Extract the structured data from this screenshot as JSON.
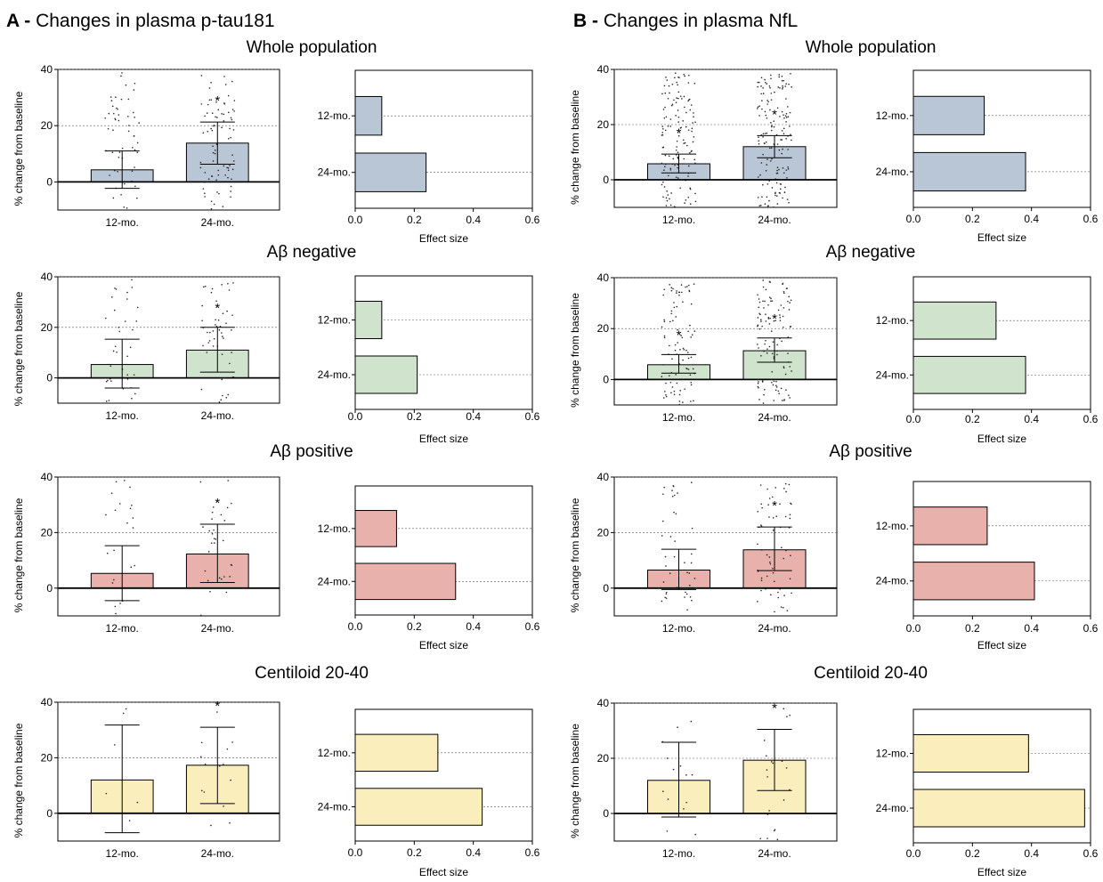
{
  "figure": {
    "panels": [
      {
        "letter": "A",
        "separator": " - ",
        "title": "Changes in plasma p-tau181"
      },
      {
        "letter": "B",
        "separator": " - ",
        "title": "Changes in plasma NfL"
      }
    ]
  },
  "chart_data": [
    {
      "type": "bar",
      "panel": "A",
      "subtitle": "Whole population",
      "ylabel": "% change from baseline",
      "categories": [
        "12-mo.",
        "24-mo."
      ],
      "values": [
        4.3,
        13.8
      ],
      "error_low": [
        -2.3,
        6.3
      ],
      "error_high": [
        11.0,
        21.3
      ],
      "significant": [
        false,
        true
      ],
      "ylim": [
        -10,
        40
      ],
      "yticks": [
        0,
        20,
        40
      ],
      "color": "#b9c6d6",
      "points": {
        "n": [
          55,
          80
        ]
      }
    },
    {
      "type": "bar",
      "panel": "A",
      "orientation": "horizontal",
      "xlabel": "Effect size",
      "categories": [
        "12-mo.",
        "24-mo."
      ],
      "values": [
        0.09,
        0.24
      ],
      "xlim": [
        0,
        0.6
      ],
      "xticks": [
        0.0,
        0.2,
        0.4,
        0.6
      ],
      "color": "#b9c6d6"
    },
    {
      "type": "bar",
      "panel": "B",
      "subtitle": "Whole population",
      "ylabel": "% change from baseline",
      "categories": [
        "12-mo.",
        "24-mo."
      ],
      "values": [
        5.8,
        12.0
      ],
      "error_low": [
        2.5,
        8.0
      ],
      "error_high": [
        9.3,
        16.0
      ],
      "significant": [
        true,
        true
      ],
      "ylim": [
        -10,
        40
      ],
      "yticks": [
        0,
        20,
        40
      ],
      "color": "#b9c6d6",
      "points": {
        "n": [
          130,
          150
        ]
      }
    },
    {
      "type": "bar",
      "panel": "B",
      "orientation": "horizontal",
      "xlabel": "Effect size",
      "categories": [
        "12-mo.",
        "24-mo."
      ],
      "values": [
        0.24,
        0.38
      ],
      "xlim": [
        0,
        0.6
      ],
      "xticks": [
        0.0,
        0.2,
        0.4,
        0.6
      ],
      "color": "#b9c6d6"
    },
    {
      "type": "bar",
      "panel": "A",
      "subtitle": "Aβ negative",
      "ylabel": "% change from baseline",
      "categories": [
        "12-mo.",
        "24-mo."
      ],
      "values": [
        5.3,
        11.0
      ],
      "error_low": [
        -4.0,
        2.3
      ],
      "error_high": [
        15.3,
        20.0
      ],
      "significant": [
        false,
        true
      ],
      "ylim": [
        -10,
        40
      ],
      "yticks": [
        0,
        20,
        40
      ],
      "color": "#cfe3cd",
      "points": {
        "n": [
          35,
          50
        ]
      }
    },
    {
      "type": "bar",
      "panel": "A",
      "orientation": "horizontal",
      "xlabel": "Effect size",
      "categories": [
        "12-mo.",
        "24-mo."
      ],
      "values": [
        0.09,
        0.21
      ],
      "xlim": [
        0,
        0.6
      ],
      "xticks": [
        0.0,
        0.2,
        0.4,
        0.6
      ],
      "color": "#cfe3cd"
    },
    {
      "type": "bar",
      "panel": "B",
      "subtitle": "Aβ negative",
      "ylabel": "% change from baseline",
      "categories": [
        "12-mo.",
        "24-mo."
      ],
      "values": [
        5.8,
        11.3
      ],
      "error_low": [
        2.5,
        6.8
      ],
      "error_high": [
        9.8,
        16.3
      ],
      "significant": [
        true,
        true
      ],
      "ylim": [
        -10,
        40
      ],
      "yticks": [
        0,
        20,
        40
      ],
      "color": "#cfe3cd",
      "points": {
        "n": [
          90,
          110
        ]
      }
    },
    {
      "type": "bar",
      "panel": "B",
      "orientation": "horizontal",
      "xlabel": "Effect size",
      "categories": [
        "12-mo.",
        "24-mo."
      ],
      "values": [
        0.28,
        0.38
      ],
      "xlim": [
        0,
        0.6
      ],
      "xticks": [
        0.0,
        0.2,
        0.4,
        0.6
      ],
      "color": "#cfe3cd"
    },
    {
      "type": "bar",
      "panel": "A",
      "subtitle": "Aβ positive",
      "ylabel": "% change from baseline",
      "categories": [
        "12-mo.",
        "24-mo."
      ],
      "values": [
        5.3,
        12.3
      ],
      "error_low": [
        -4.5,
        2.0
      ],
      "error_high": [
        15.3,
        23.0
      ],
      "significant": [
        false,
        true
      ],
      "ylim": [
        -10,
        40
      ],
      "yticks": [
        0,
        20,
        40
      ],
      "color": "#e8b1ab",
      "points": {
        "n": [
          22,
          30
        ]
      }
    },
    {
      "type": "bar",
      "panel": "A",
      "orientation": "horizontal",
      "xlabel": "Effect size",
      "categories": [
        "12-mo.",
        "24-mo."
      ],
      "values": [
        0.14,
        0.34
      ],
      "xlim": [
        0,
        0.6
      ],
      "xticks": [
        0.0,
        0.2,
        0.4,
        0.6
      ],
      "color": "#e8b1ab"
    },
    {
      "type": "bar",
      "panel": "B",
      "subtitle": "Aβ positive",
      "ylabel": "% change from baseline",
      "categories": [
        "12-mo.",
        "24-mo."
      ],
      "values": [
        6.5,
        13.8
      ],
      "error_low": [
        -0.5,
        6.3
      ],
      "error_high": [
        14.0,
        22.0
      ],
      "significant": [
        false,
        true
      ],
      "ylim": [
        -10,
        40
      ],
      "yticks": [
        0,
        20,
        40
      ],
      "color": "#e8b1ab",
      "points": {
        "n": [
          40,
          60
        ]
      }
    },
    {
      "type": "bar",
      "panel": "B",
      "orientation": "horizontal",
      "xlabel": "Effect size",
      "categories": [
        "12-mo.",
        "24-mo."
      ],
      "values": [
        0.25,
        0.41
      ],
      "xlim": [
        0,
        0.6
      ],
      "xticks": [
        0.0,
        0.2,
        0.4,
        0.6
      ],
      "color": "#e8b1ab"
    },
    {
      "type": "bar",
      "panel": "A",
      "subtitle": "Centiloid 20-40",
      "ylabel": "% change from baseline",
      "categories": [
        "12-mo.",
        "24-mo."
      ],
      "values": [
        12.0,
        17.3
      ],
      "error_low": [
        -7.0,
        3.5
      ],
      "error_high": [
        31.8,
        31.0
      ],
      "significant": [
        false,
        true
      ],
      "ylim": [
        -10,
        40
      ],
      "yticks": [
        0,
        20,
        40
      ],
      "color": "#fbeebd",
      "points": {
        "n": [
          6,
          14
        ]
      }
    },
    {
      "type": "bar",
      "panel": "A",
      "orientation": "horizontal",
      "xlabel": "Effect size",
      "categories": [
        "12-mo.",
        "24-mo."
      ],
      "values": [
        0.28,
        0.43
      ],
      "xlim": [
        0,
        0.6
      ],
      "xticks": [
        0.0,
        0.2,
        0.4,
        0.6
      ],
      "color": "#fbeebd"
    },
    {
      "type": "bar",
      "panel": "B",
      "subtitle": "Centiloid 20-40",
      "ylabel": "% change from baseline",
      "categories": [
        "12-mo.",
        "24-mo."
      ],
      "values": [
        12.0,
        19.3
      ],
      "error_low": [
        -1.3,
        8.3
      ],
      "error_high": [
        25.8,
        30.5
      ],
      "significant": [
        false,
        true
      ],
      "ylim": [
        -10,
        40
      ],
      "yticks": [
        0,
        20,
        40
      ],
      "color": "#fbeebd",
      "points": {
        "n": [
          14,
          20
        ]
      }
    },
    {
      "type": "bar",
      "panel": "B",
      "orientation": "horizontal",
      "xlabel": "Effect size",
      "categories": [
        "12-mo.",
        "24-mo."
      ],
      "values": [
        0.39,
        0.58
      ],
      "xlim": [
        0,
        0.6
      ],
      "xticks": [
        0.0,
        0.2,
        0.4,
        0.6
      ],
      "color": "#fbeebd"
    }
  ]
}
